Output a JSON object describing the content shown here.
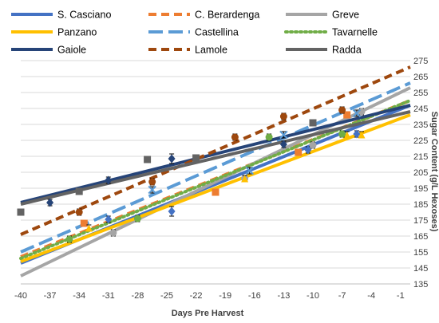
{
  "chart_data": {
    "type": "scatter",
    "title": "",
    "xlabel": "Days Pre Harvest",
    "ylabel": "Sugar Content (g/L Hexoses)",
    "xlim": [
      -40,
      0
    ],
    "ylim": [
      135,
      275
    ],
    "x_ticks": [
      -40,
      -37,
      -34,
      -31,
      -28,
      -25,
      -22,
      -19,
      -16,
      -13,
      -10,
      -7,
      -4,
      -1
    ],
    "y_ticks": [
      135,
      145,
      155,
      165,
      175,
      185,
      195,
      205,
      215,
      225,
      235,
      245,
      255,
      265,
      275
    ],
    "grid": "horizontal",
    "legend_position": "top",
    "series": [
      {
        "name": "S. Casciano",
        "color": "#4472C4",
        "dash": "solid",
        "marker": "diamond",
        "trend": [
          [
            -40,
            148
          ],
          [
            0,
            247
          ]
        ],
        "points": [
          {
            "x": -31,
            "y": 175.5,
            "err": 2
          },
          {
            "x": -24.5,
            "y": 180.5,
            "err": 3
          },
          {
            "x": -10.5,
            "y": 219,
            "err": 2
          },
          {
            "x": -5.5,
            "y": 229,
            "err": 2
          }
        ]
      },
      {
        "name": "C. Berardenga",
        "color": "#ED7D31",
        "dash": "dash",
        "marker": "square",
        "trend": [
          [
            -40,
            152
          ],
          [
            0,
            250
          ]
        ],
        "points": [
          {
            "x": -33.5,
            "y": 173,
            "err": 2
          },
          {
            "x": -20,
            "y": 192.5,
            "err": 2
          },
          {
            "x": -11.5,
            "y": 217.5,
            "err": 2
          },
          {
            "x": -6.5,
            "y": 241,
            "err": 2
          }
        ]
      },
      {
        "name": "Greve",
        "color": "#A5A5A5",
        "dash": "solid",
        "marker": "circle",
        "trend": [
          [
            -40,
            140
          ],
          [
            0,
            258
          ]
        ],
        "points": [
          {
            "x": -30.5,
            "y": 167,
            "err": 2
          },
          {
            "x": -17,
            "y": 201,
            "err": 2
          },
          {
            "x": -10,
            "y": 222,
            "err": 2
          },
          {
            "x": -5,
            "y": 243,
            "err": 2
          }
        ]
      },
      {
        "name": "Panzano",
        "color": "#FFC000",
        "dash": "solid",
        "marker": "triangle",
        "trend": [
          [
            -40,
            149
          ],
          [
            0,
            241
          ]
        ],
        "points": [
          {
            "x": -33,
            "y": 170,
            "err": 2
          },
          {
            "x": -17,
            "y": 201,
            "err": 2
          },
          {
            "x": -6.5,
            "y": 228.5,
            "err": 2
          },
          {
            "x": -5,
            "y": 228.5,
            "err": 2
          }
        ]
      },
      {
        "name": "Castellina",
        "color": "#5B9BD5",
        "dash": "longdash",
        "marker": "x",
        "trend": [
          [
            -40,
            155
          ],
          [
            0,
            261
          ]
        ],
        "points": [
          {
            "x": -26.5,
            "y": 194,
            "err": 2
          },
          {
            "x": -16.5,
            "y": 206,
            "err": 2
          },
          {
            "x": -13,
            "y": 228.5,
            "err": 2
          },
          {
            "x": -5.5,
            "y": 242,
            "err": 2
          }
        ]
      },
      {
        "name": "Tavarnelle",
        "color": "#70AD47",
        "dash": "dot",
        "marker": "circle",
        "trend": [
          [
            -40,
            151
          ],
          [
            0,
            250
          ]
        ],
        "points": [
          {
            "x": -35,
            "y": 163,
            "err": 2
          },
          {
            "x": -28,
            "y": 176,
            "err": 2
          },
          {
            "x": -14.5,
            "y": 227,
            "err": 2
          },
          {
            "x": -7,
            "y": 229,
            "err": 2
          }
        ]
      },
      {
        "name": "Gaiole",
        "color": "#264478",
        "dash": "solid",
        "marker": "diamond",
        "trend": [
          [
            -40,
            186
          ],
          [
            0,
            247
          ]
        ],
        "points": [
          {
            "x": -37,
            "y": 186,
            "err": 2
          },
          {
            "x": -31,
            "y": 200,
            "err": 2
          },
          {
            "x": -24.5,
            "y": 213.5,
            "err": 3
          },
          {
            "x": -13,
            "y": 222.5,
            "err": 2
          }
        ]
      },
      {
        "name": "Lamole",
        "color": "#9E480E",
        "dash": "dash",
        "marker": "circle",
        "trend": [
          [
            -40,
            166
          ],
          [
            0,
            271
          ]
        ],
        "points": [
          {
            "x": -34,
            "y": 180,
            "err": 2
          },
          {
            "x": -26.5,
            "y": 199,
            "err": 2
          },
          {
            "x": -18,
            "y": 227,
            "err": 2
          },
          {
            "x": -13,
            "y": 240,
            "err": 2
          },
          {
            "x": -7,
            "y": 244,
            "err": 2
          }
        ]
      },
      {
        "name": "Radda",
        "color": "#636363",
        "dash": "solid",
        "marker": "square",
        "trend": [
          [
            -40,
            185
          ],
          [
            0,
            243
          ]
        ],
        "points": [
          {
            "x": -40,
            "y": 180,
            "err": 2
          },
          {
            "x": -34,
            "y": 193,
            "err": 2
          },
          {
            "x": -27,
            "y": 213,
            "err": 2
          },
          {
            "x": -22,
            "y": 214,
            "err": 2
          },
          {
            "x": -10,
            "y": 236,
            "err": 2
          }
        ]
      }
    ]
  }
}
